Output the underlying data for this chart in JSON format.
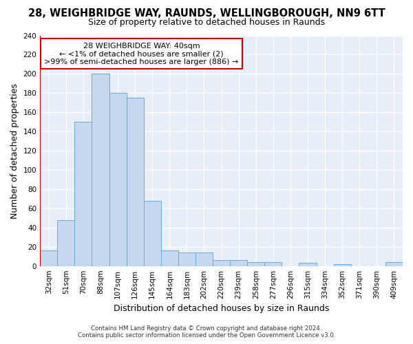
{
  "title_line1": "28, WEIGHBRIDGE WAY, RAUNDS, WELLINGBOROUGH, NN9 6TT",
  "title_line2": "Size of property relative to detached houses in Raunds",
  "xlabel": "Distribution of detached houses by size in Raunds",
  "ylabel": "Number of detached properties",
  "categories": [
    "32sqm",
    "51sqm",
    "70sqm",
    "88sqm",
    "107sqm",
    "126sqm",
    "145sqm",
    "164sqm",
    "183sqm",
    "202sqm",
    "220sqm",
    "239sqm",
    "258sqm",
    "277sqm",
    "296sqm",
    "315sqm",
    "334sqm",
    "352sqm",
    "371sqm",
    "390sqm",
    "409sqm"
  ],
  "values": [
    16,
    48,
    150,
    200,
    180,
    175,
    68,
    16,
    14,
    14,
    6,
    6,
    4,
    4,
    0,
    3,
    0,
    2,
    0,
    0,
    4
  ],
  "bar_color": "#c5d8f0",
  "bar_edge_color": "#6aaad4",
  "highlight_color": "#cc0000",
  "annotation_line1": "28 WEIGHBRIDGE WAY: 40sqm",
  "annotation_line2": "← <1% of detached houses are smaller (2)",
  "annotation_line3": ">99% of semi-detached houses are larger (886) →",
  "annotation_box_color": "#cc0000",
  "annotation_bg": "#ffffff",
  "ylim": [
    0,
    240
  ],
  "yticks": [
    0,
    20,
    40,
    60,
    80,
    100,
    120,
    140,
    160,
    180,
    200,
    220,
    240
  ],
  "footer_line1": "Contains HM Land Registry data © Crown copyright and database right 2024.",
  "footer_line2": "Contains public sector information licensed under the Open Government Licence v3.0.",
  "bg_color": "#e8eef8",
  "grid_color": "#ffffff",
  "fig_bg": "#ffffff",
  "title_fontsize": 10.5,
  "subtitle_fontsize": 9,
  "tick_fontsize": 7.5,
  "ylabel_fontsize": 9,
  "xlabel_fontsize": 9
}
